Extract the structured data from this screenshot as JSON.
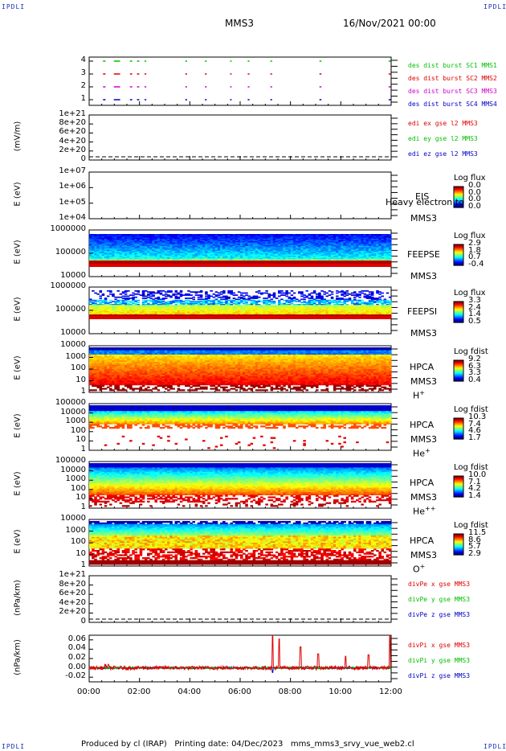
{
  "corners": {
    "tl": "IPDLI",
    "tr": "IPDLI",
    "bl": "IPDLI",
    "br": "IPDLI"
  },
  "header": {
    "mission": "MMS3",
    "datetime": "16/Nov/2021 00:00"
  },
  "footer": "Produced by cl (IRAP)   Printing date: 04/Dec/2023   mms_mms3_srvy_vue_web2.cl",
  "colors": {
    "red": "#e00000",
    "green": "#00c000",
    "blue": "#0000c8",
    "magenta": "#d000d0"
  },
  "chart_data": {
    "type": "heatmap",
    "x_range": [
      "00:00",
      "12:00"
    ],
    "x_ticks": [
      "00:00",
      "02:00",
      "04:00",
      "06:00",
      "08:00",
      "10:00",
      "12:00"
    ],
    "panels": [
      {
        "id": "burst",
        "type": "scatter",
        "y_ticks": [
          "4",
          "3",
          "2",
          "1"
        ],
        "series": [
          {
            "name": "des dist burst SC1 MMS1",
            "level": 4,
            "color": "#00c000",
            "intervals_h": [
              [
                0.55,
                0.62
              ],
              [
                0.98,
                1.2
              ],
              [
                1.62,
                1.68
              ],
              [
                1.9,
                1.96
              ],
              [
                2.2,
                2.24
              ],
              [
                3.82,
                3.86
              ],
              [
                4.6,
                4.64
              ],
              [
                5.6,
                5.63
              ],
              [
                6.3,
                6.34
              ],
              [
                7.2,
                7.24
              ],
              [
                9.15,
                9.2
              ],
              [
                11.9,
                11.95
              ]
            ]
          },
          {
            "name": "des dist burst SC2 MMS2",
            "level": 3,
            "color": "#e00000",
            "intervals_h": [
              [
                0.55,
                0.62
              ],
              [
                0.98,
                1.2
              ],
              [
                1.62,
                1.68
              ],
              [
                1.9,
                1.96
              ],
              [
                2.2,
                2.24
              ],
              [
                3.82,
                3.86
              ],
              [
                4.6,
                4.64
              ],
              [
                5.6,
                5.63
              ],
              [
                6.3,
                6.34
              ],
              [
                7.2,
                7.24
              ],
              [
                9.15,
                9.2
              ],
              [
                11.9,
                11.95
              ]
            ]
          },
          {
            "name": "des dist burst SC3 MMS3",
            "level": 2,
            "color": "#d000d0",
            "intervals_h": [
              [
                0.55,
                0.62
              ],
              [
                0.98,
                1.2
              ],
              [
                1.62,
                1.68
              ],
              [
                1.9,
                1.96
              ],
              [
                2.2,
                2.24
              ],
              [
                3.82,
                3.86
              ],
              [
                4.6,
                4.64
              ],
              [
                5.6,
                5.63
              ],
              [
                6.3,
                6.34
              ],
              [
                7.2,
                7.24
              ],
              [
                9.15,
                9.2
              ],
              [
                11.9,
                11.95
              ]
            ]
          },
          {
            "name": "des dist burst SC4 MMS4",
            "level": 1,
            "color": "#0000c8",
            "intervals_h": [
              [
                0.55,
                0.62
              ],
              [
                0.98,
                1.2
              ],
              [
                1.62,
                1.68
              ],
              [
                1.9,
                1.96
              ],
              [
                2.2,
                2.24
              ],
              [
                3.82,
                3.86
              ],
              [
                4.6,
                4.64
              ],
              [
                5.6,
                5.63
              ],
              [
                6.3,
                6.34
              ],
              [
                7.2,
                7.24
              ],
              [
                9.15,
                9.2
              ],
              [
                11.9,
                11.95
              ]
            ]
          }
        ]
      },
      {
        "id": "edi",
        "type": "line",
        "ylabel": "(mV/m)",
        "y_ticks": [
          "1e+21",
          "8e+20",
          "6e+20",
          "4e+20",
          "2e+20",
          "0"
        ],
        "series": [
          {
            "name": "edi ex gse l2 MMS3",
            "color": "#e00000"
          },
          {
            "name": "edi ey gse l2 MMS3",
            "color": "#00c000"
          },
          {
            "name": "edi ez gse l2 MMS3",
            "color": "#0000c8"
          }
        ]
      },
      {
        "id": "eis",
        "type": "heatmap",
        "ylabel": "E (eV)",
        "y_ticks": [
          "1e+07",
          "1e+06",
          "1e+05",
          "1e+04"
        ],
        "instrument": "EIS",
        "overlay": "Heavy electron to",
        "sc": "MMS3",
        "cbar_title": "Log flux",
        "cbar_values": [
          "0.0",
          "0.0",
          "0.0",
          "0.0"
        ]
      },
      {
        "id": "feepse",
        "type": "heatmap",
        "ylabel": "E (eV)",
        "y_ticks": [
          "1000000",
          "100000",
          "10000"
        ],
        "instrument": "FEEPSE",
        "sc": "MMS3",
        "cbar_title": "Log flux",
        "cbar_values": [
          "2.9",
          "1.8",
          "0.7",
          "-0.4"
        ]
      },
      {
        "id": "feepsi",
        "type": "heatmap",
        "ylabel": "E (eV)",
        "y_ticks": [
          "1000000",
          "100000",
          "10000"
        ],
        "instrument": "FEEPSI",
        "sc": "MMS3",
        "cbar_title": "Log flux",
        "cbar_values": [
          "3.3",
          "2.4",
          "1.4",
          "0.5"
        ]
      },
      {
        "id": "hpca_h",
        "type": "heatmap",
        "ylabel": "E (eV)",
        "y_ticks": [
          "10000",
          "1000",
          "100",
          "10",
          "1"
        ],
        "instrument": "HPCA",
        "sc": "MMS3",
        "species": "H",
        "charge": "+",
        "cbar_title": "Log fdist",
        "cbar_values": [
          "9.2",
          "6.3",
          "3.3",
          "0.4"
        ]
      },
      {
        "id": "hpca_he",
        "type": "heatmap",
        "ylabel": "E (eV)",
        "y_ticks": [
          "100000",
          "10000",
          "1000",
          "100",
          "10",
          "1"
        ],
        "instrument": "HPCA",
        "sc": "MMS3",
        "species": "He",
        "charge": "+",
        "cbar_title": "Log fdist",
        "cbar_values": [
          "10.3",
          "7.4",
          "4.6",
          "1.7"
        ]
      },
      {
        "id": "hpca_he2",
        "type": "heatmap",
        "ylabel": "E (eV)",
        "y_ticks": [
          "100000",
          "10000",
          "1000",
          "100",
          "10",
          "1"
        ],
        "instrument": "HPCA",
        "sc": "MMS3",
        "species": "He",
        "charge": "++",
        "cbar_title": "Log fdist",
        "cbar_values": [
          "10.0",
          "7.1",
          "4.2",
          "1.4"
        ]
      },
      {
        "id": "hpca_o",
        "type": "heatmap",
        "ylabel": "E (eV)",
        "y_ticks": [
          "10000",
          "1000",
          "100",
          "10",
          "1"
        ],
        "instrument": "HPCA",
        "sc": "MMS3",
        "species": "O",
        "charge": "+",
        "cbar_title": "Log fdist",
        "cbar_values": [
          "11.5",
          "8.6",
          "5.7",
          "2.9"
        ]
      },
      {
        "id": "divpe",
        "type": "line",
        "ylabel": "(nPa/km)",
        "y_ticks": [
          "1e+21",
          "8e+20",
          "6e+20",
          "4e+20",
          "2e+20",
          "0"
        ],
        "series": [
          {
            "name": "divPe x gse MMS3",
            "color": "#e00000"
          },
          {
            "name": "divPe y gse MMS3",
            "color": "#00c000"
          },
          {
            "name": "divPe z gse MMS3",
            "color": "#0000c8"
          }
        ]
      },
      {
        "id": "divpi",
        "type": "line",
        "ylabel": "(nPa/km)",
        "y_ticks": [
          "0.06",
          "0.04",
          "0.02",
          "0.00",
          "-0.02"
        ],
        "ylim": [
          -0.03,
          0.07
        ],
        "series": [
          {
            "name": "divPi x gse MMS3",
            "color": "#e00000"
          },
          {
            "name": "divPi y gse MMS3",
            "color": "#00c000"
          },
          {
            "name": "divPi z gse MMS3",
            "color": "#0000c8"
          }
        ]
      }
    ]
  }
}
